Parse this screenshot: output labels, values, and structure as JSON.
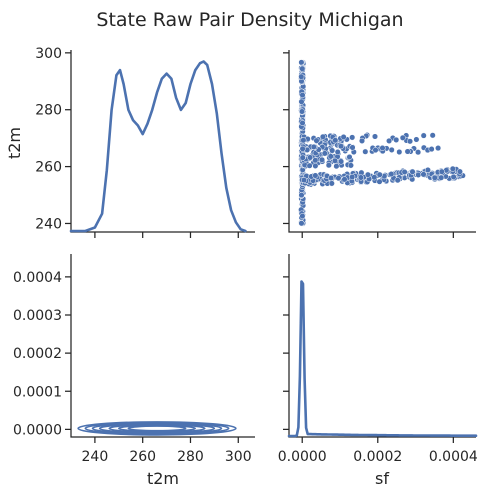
{
  "title": "State Raw Pair Density Michigan",
  "chart_data": {
    "type": "pairplot",
    "variables": [
      "t2m",
      "sf"
    ],
    "colors": {
      "series": "#4c72b0"
    },
    "panels": [
      {
        "id": "t2m_t2m",
        "type": "kde_1d",
        "variable": "t2m",
        "x_range": [
          230,
          307
        ],
        "ylabel": "t2m",
        "ylim": [
          237,
          301
        ],
        "yticks": [
          240,
          260,
          280,
          300
        ],
        "density_curve": {
          "x": [
            230,
            236,
            240,
            243,
            245,
            247,
            249,
            250.5,
            252,
            254,
            256,
            258,
            260,
            262,
            264,
            266,
            268,
            270,
            272,
            274,
            276,
            278,
            280,
            282,
            284,
            285.5,
            287,
            289,
            291,
            293,
            295,
            297,
            299,
            301,
            303
          ],
          "density_rel": [
            0.0,
            0.0,
            0.02,
            0.1,
            0.35,
            0.7,
            0.9,
            0.93,
            0.85,
            0.7,
            0.64,
            0.61,
            0.56,
            0.62,
            0.7,
            0.8,
            0.88,
            0.91,
            0.88,
            0.77,
            0.7,
            0.74,
            0.85,
            0.93,
            0.97,
            0.98,
            0.96,
            0.85,
            0.68,
            0.45,
            0.25,
            0.12,
            0.05,
            0.01,
            0.0
          ]
        }
      },
      {
        "id": "t2m_sf",
        "type": "scatter",
        "x_variable": "sf",
        "y_variable": "t2m",
        "x_range": [
          -3.5e-05,
          0.00046
        ],
        "y_range": [
          237,
          301
        ],
        "clusters": [
          {
            "sf_range": [
              0.0,
              0.0
            ],
            "t2m_range": [
              240,
              297
            ]
          },
          {
            "sf_range": [
              0.0,
              0.00013
            ],
            "t2m_range": [
              260,
              271
            ]
          },
          {
            "sf_range": [
              0.00013,
              0.00036
            ],
            "t2m_range": [
              265,
              271
            ]
          },
          {
            "sf_range": [
              0.0,
              0.00043
            ],
            "t2m_range": [
              253,
              258
            ]
          }
        ]
      },
      {
        "id": "sf_t2m",
        "type": "kde_2d",
        "x_variable": "t2m",
        "y_variable": "sf",
        "xlabel": "t2m",
        "xlim": [
          230,
          307
        ],
        "xticks": [
          240,
          260,
          280,
          300
        ],
        "ylim": [
          -2e-05,
          0.00046
        ],
        "yticks": [
          "0.0000",
          "0.0001",
          "0.0002",
          "0.0003",
          "0.0004"
        ],
        "ytick_values": [
          0.0,
          0.0001,
          0.0002,
          0.0003,
          0.0004
        ],
        "contour_center": {
          "t2m": 266,
          "sf": 0.0
        },
        "contour_half_widths_t2m": [
          33,
          30,
          27,
          24,
          20,
          16,
          12
        ]
      },
      {
        "id": "sf_sf",
        "type": "kde_1d",
        "variable": "sf",
        "xlabel": "sf",
        "xlim": [
          -3.5e-05,
          0.00046
        ],
        "xticks": [
          "0.0000",
          "0.0002",
          "0.0004"
        ],
        "xtick_values": [
          0.0,
          0.0002,
          0.0004
        ],
        "peak_sf": 0.0,
        "peak_density_rel": 1.0
      }
    ]
  }
}
